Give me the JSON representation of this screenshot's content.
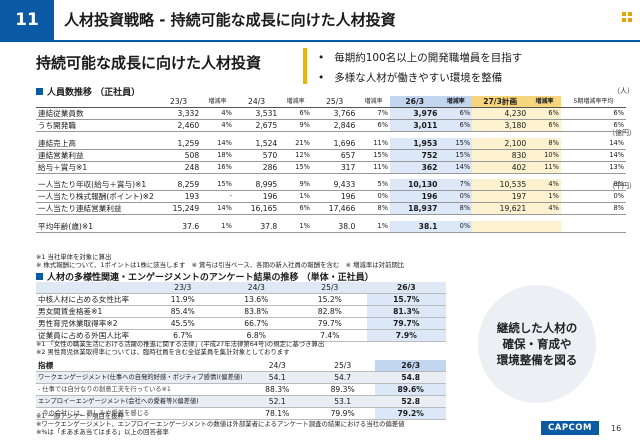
{
  "header": {
    "number": "11",
    "title": "人材投資戦略 - 持続可能な成長に向けた人材投資"
  },
  "subtitle": "持続可能な成長に向けた人材投資",
  "bullets": [
    "毎期約100名以上の開発職増員を目指す",
    "多様な人材が働きやすい環境を整備"
  ],
  "section1": {
    "title": "人員数推移 （正社員）",
    "unit1": "（人）",
    "unit2": "（億円）",
    "unit3": "（千円）"
  },
  "table1": {
    "columns": [
      "23/3",
      "増減率",
      "24/3",
      "増減率",
      "25/3",
      "増減率",
      "26/3",
      "増減率",
      "27/3計画",
      "増減率",
      "5期増減率平均"
    ],
    "rows": [
      {
        "label": "連結従業員数",
        "v": [
          "3,332",
          "4%",
          "3,531",
          "6%",
          "3,766",
          "7%",
          "3,976",
          "6%",
          "4,230",
          "6%",
          "6%"
        ]
      },
      {
        "label": "うち開発職",
        "v": [
          "2,460",
          "4%",
          "2,675",
          "9%",
          "2,846",
          "6%",
          "3,011",
          "6%",
          "3,180",
          "6%",
          "6%"
        ]
      },
      {
        "label": "連結売上高",
        "v": [
          "1,259",
          "14%",
          "1,524",
          "21%",
          "1,696",
          "11%",
          "1,953",
          "15%",
          "2,100",
          "8%",
          "14%"
        ]
      },
      {
        "label": "連結営業利益",
        "v": [
          "508",
          "18%",
          "570",
          "12%",
          "657",
          "15%",
          "752",
          "15%",
          "830",
          "10%",
          "14%"
        ]
      },
      {
        "label": "給与＋賞与※1",
        "v": [
          "248",
          "16%",
          "286",
          "15%",
          "317",
          "11%",
          "362",
          "14%",
          "402",
          "11%",
          "13%"
        ]
      },
      {
        "label": "一人当たり年収(給与＋賞与)※1",
        "v": [
          "8,259",
          "15%",
          "8,995",
          "9%",
          "9,433",
          "5%",
          "10,130",
          "7%",
          "10,535",
          "4%",
          "8%"
        ]
      },
      {
        "label": "一人当たり株式報酬(ポイント)※2",
        "v": [
          "193",
          "-",
          "196",
          "1%",
          "196",
          "0%",
          "196",
          "0%",
          "197",
          "1%",
          "0%"
        ]
      },
      {
        "label": "一人当たり連結営業利益",
        "v": [
          "15,249",
          "14%",
          "16,165",
          "6%",
          "17,466",
          "8%",
          "18,937",
          "8%",
          "19,621",
          "4%",
          "8%"
        ]
      },
      {
        "label": "平均年齢(歳)※1",
        "v": [
          "37.6",
          "1%",
          "37.8",
          "1%",
          "38.0",
          "1%",
          "38.1",
          "0%",
          "",
          "",
          ""
        ]
      }
    ],
    "notes": [
      "※1 当社単体を対象に算出",
      "※ 株式報酬について、1ポイントは1株に該当します　※ 賞与は引当ベース、各期の新入社員の報酬を含む　※ 増減率は対前期比"
    ]
  },
  "section2": {
    "title": "人材の多様性関連・エンゲージメントのアンケート結果の推移 （単体・正社員）"
  },
  "table2": {
    "columns": [
      "23/3",
      "24/3",
      "25/3",
      "26/3"
    ],
    "rows": [
      {
        "label": "中核人材に占める女性比率",
        "v": [
          "11.9%",
          "13.6%",
          "15.2%",
          "15.7%"
        ]
      },
      {
        "label": "男女間賃金格差※1",
        "v": [
          "85.4%",
          "83.8%",
          "82.8%",
          "81.3%"
        ]
      },
      {
        "label": "男性育児休業取得率※2",
        "v": [
          "45.5%",
          "66.7%",
          "79.7%",
          "79.7%"
        ]
      },
      {
        "label": "従業員に占める外国人比率",
        "v": [
          "6.7%",
          "6.8%",
          "7.4%",
          "7.9%"
        ]
      }
    ],
    "notes": [
      "※1 「女性の職業生活における活躍の推進に関する法律」(平成27年法律第64号)の規定に基づき算出",
      "※2 男性育児休業取得率については、臨時社員を含む全従業員を集計対象としております"
    ]
  },
  "table3": {
    "columns": [
      "指標",
      "24/3",
      "25/3",
      "26/3"
    ],
    "rows": [
      {
        "label": "ワークエンゲージメント(仕事への自発的好感・ポジティブ感情)(偏差値)",
        "v": [
          "54.1",
          "54.7",
          "54.8"
        ],
        "group": true
      },
      {
        "label": "- 仕事では自分なりの創意工夫を行っている※1",
        "v": [
          "88.3%",
          "89.3%",
          "89.6%"
        ],
        "group": false
      },
      {
        "label": "エンプロイーエンゲージメント(会社への愛着等)(偏差値)",
        "v": [
          "52.1",
          "53.1",
          "52.8"
        ],
        "group": true
      },
      {
        "label": "- 今の会社には、親しみや愛着を感じる",
        "v": [
          "78.1%",
          "79.9%",
          "79.2%"
        ],
        "group": false
      }
    ],
    "notes": [
      "※1 一部アンケート項目を抜粋",
      "※ワークエンゲージメント、エンプロイーエンゲージメントの数値は外部業者によるアンケート調査の結果における当社の偏差値",
      "※%は「まあまあ当てはまる」以上の回答者率"
    ]
  },
  "circle": [
    "継続した人材の",
    "確保・育成や",
    "環境整備を図る"
  ],
  "footer": {
    "logo": "CAPCOM",
    "page": "16"
  },
  "colors": {
    "accent": "#0a5aa6",
    "highlight_yellow": "#f0b400",
    "col_highlight": "#dce8f7"
  }
}
